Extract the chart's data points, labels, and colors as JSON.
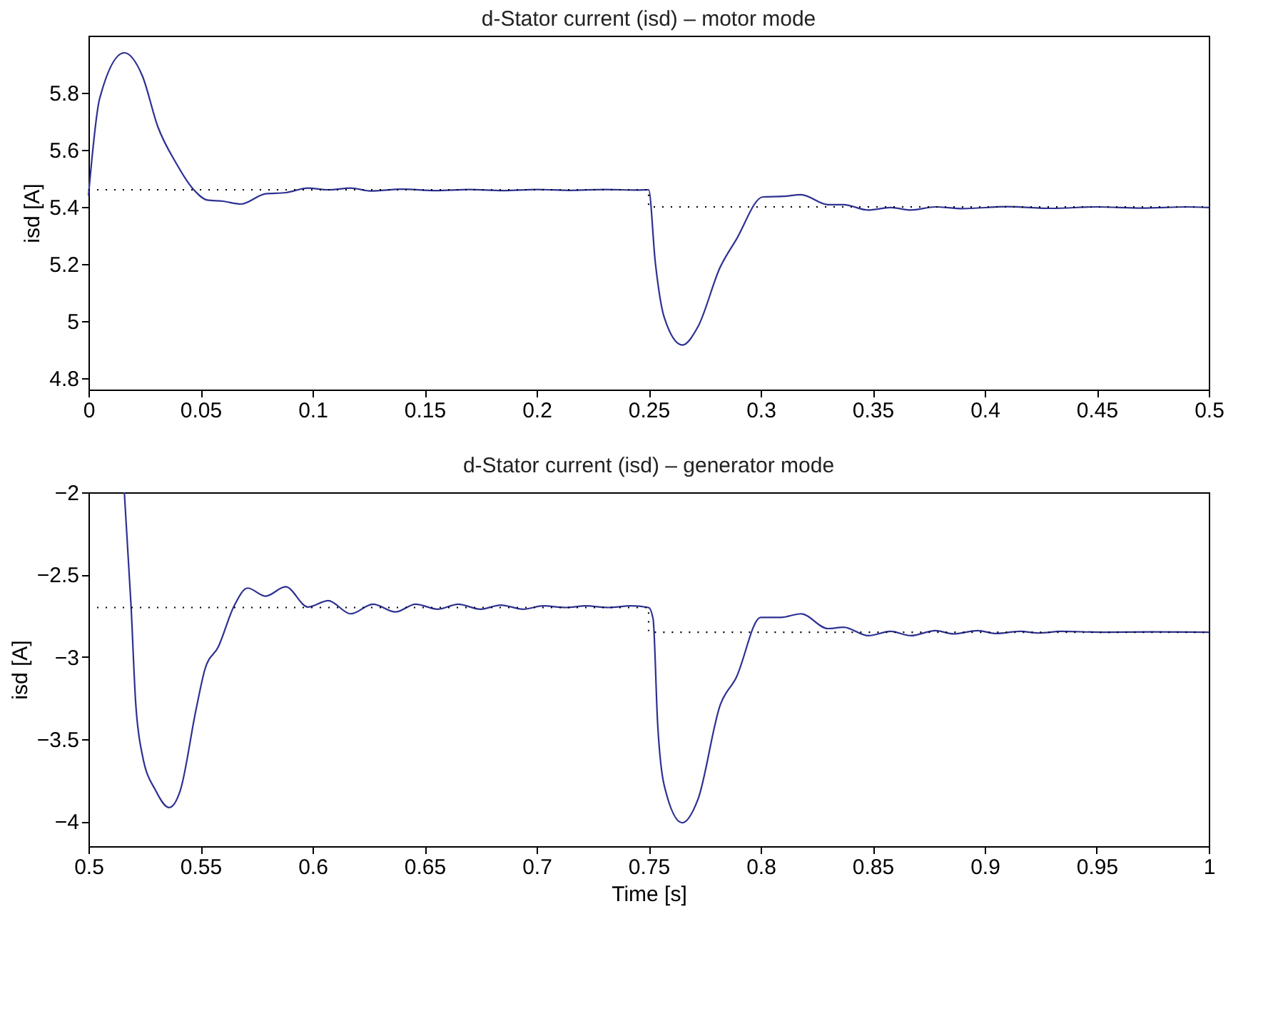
{
  "chart_data": [
    {
      "type": "line",
      "title": "d-Stator current (isd) – motor mode",
      "ylabel": "isd [A]",
      "xlim": [
        0,
        0.5
      ],
      "xticks": [
        0,
        0.05,
        0.1,
        0.15,
        0.2,
        0.25,
        0.3,
        0.35,
        0.4,
        0.45,
        0.5
      ],
      "ylim": [
        4.76,
        6.0
      ],
      "yticks": [
        4.8,
        5,
        5.2,
        5.4,
        5.6,
        5.8
      ],
      "grid": false,
      "marker": "none",
      "series": [
        {
          "color": "#2e3192",
          "line_style": "solid",
          "x": [
            0,
            0.005,
            0.016,
            0.024,
            0.031,
            0.039,
            0.047,
            0.053,
            0.06,
            0.068,
            0.079,
            0.088,
            0.098,
            0.107,
            0.117,
            0.126,
            0.14,
            0.155,
            0.17,
            0.185,
            0.2,
            0.215,
            0.23,
            0.245,
            0.25,
            0.253,
            0.257,
            0.265,
            0.272,
            0.282,
            0.289,
            0.301,
            0.31,
            0.318,
            0.33,
            0.337,
            0.348,
            0.358,
            0.367,
            0.378,
            0.39,
            0.41,
            0.43,
            0.45,
            0.47,
            0.49,
            0.5
          ],
          "values": [
            5.44,
            5.78,
            5.94,
            5.86,
            5.68,
            5.555,
            5.46,
            5.424,
            5.42,
            5.41,
            5.446,
            5.45,
            5.466,
            5.46,
            5.466,
            5.456,
            5.462,
            5.457,
            5.461,
            5.457,
            5.461,
            5.458,
            5.461,
            5.459,
            5.46,
            5.204,
            5.012,
            4.916,
            4.98,
            5.19,
            5.284,
            5.435,
            5.437,
            5.443,
            5.408,
            5.408,
            5.389,
            5.398,
            5.389,
            5.4,
            5.394,
            5.401,
            5.395,
            5.4,
            5.396,
            5.4,
            5.398
          ]
        },
        {
          "color": "#000000",
          "line_style": "dotted",
          "x": [
            0,
            0.25,
            0.25,
            0.5
          ],
          "values": [
            5.46,
            5.46,
            5.4,
            5.4
          ]
        }
      ]
    },
    {
      "type": "line",
      "title": "d-Stator current (isd) – generator mode",
      "xlabel": "Time [s]",
      "ylabel": "isd [A]",
      "xlim": [
        0.5,
        1
      ],
      "xticks": [
        0.5,
        0.55,
        0.6,
        0.65,
        0.7,
        0.75,
        0.8,
        0.85,
        0.9,
        0.95,
        1
      ],
      "ylim": [
        -4.15,
        -2
      ],
      "yticks": [
        -4,
        -3.5,
        -3,
        -2.5,
        -2
      ],
      "grid": false,
      "marker": "none",
      "series": [
        {
          "color": "#2e3192",
          "line_style": "solid",
          "x": [
            0.516,
            0.519,
            0.521,
            0.524,
            0.53,
            0.536,
            0.541,
            0.548,
            0.552,
            0.558,
            0.565,
            0.571,
            0.579,
            0.588,
            0.598,
            0.607,
            0.617,
            0.627,
            0.637,
            0.646,
            0.656,
            0.665,
            0.675,
            0.684,
            0.694,
            0.703,
            0.713,
            0.722,
            0.732,
            0.742,
            0.75,
            0.752,
            0.754,
            0.757,
            0.765,
            0.772,
            0.782,
            0.789,
            0.8,
            0.809,
            0.818,
            0.83,
            0.837,
            0.848,
            0.858,
            0.867,
            0.878,
            0.886,
            0.897,
            0.905,
            0.916,
            0.924,
            0.934,
            0.953,
            0.975,
            1.0
          ],
          "values": [
            -2.0,
            -2.69,
            -3.265,
            -3.593,
            -3.812,
            -3.915,
            -3.81,
            -3.32,
            -3.074,
            -2.937,
            -2.69,
            -2.582,
            -2.631,
            -2.574,
            -2.697,
            -2.658,
            -2.738,
            -2.68,
            -2.727,
            -2.68,
            -2.71,
            -2.68,
            -2.71,
            -2.685,
            -2.71,
            -2.69,
            -2.7,
            -2.69,
            -2.7,
            -2.69,
            -2.7,
            -2.77,
            -3.4,
            -3.784,
            -4.008,
            -3.866,
            -3.29,
            -3.128,
            -2.76,
            -2.76,
            -2.738,
            -2.828,
            -2.82,
            -2.871,
            -2.845,
            -2.871,
            -2.84,
            -2.86,
            -2.84,
            -2.858,
            -2.845,
            -2.855,
            -2.845,
            -2.85,
            -2.848,
            -2.85
          ]
        },
        {
          "color": "#000000",
          "line_style": "dotted",
          "x": [
            0.5,
            0.75,
            0.75,
            1
          ],
          "values": [
            -2.7,
            -2.7,
            -2.85,
            -2.85
          ]
        }
      ]
    }
  ]
}
